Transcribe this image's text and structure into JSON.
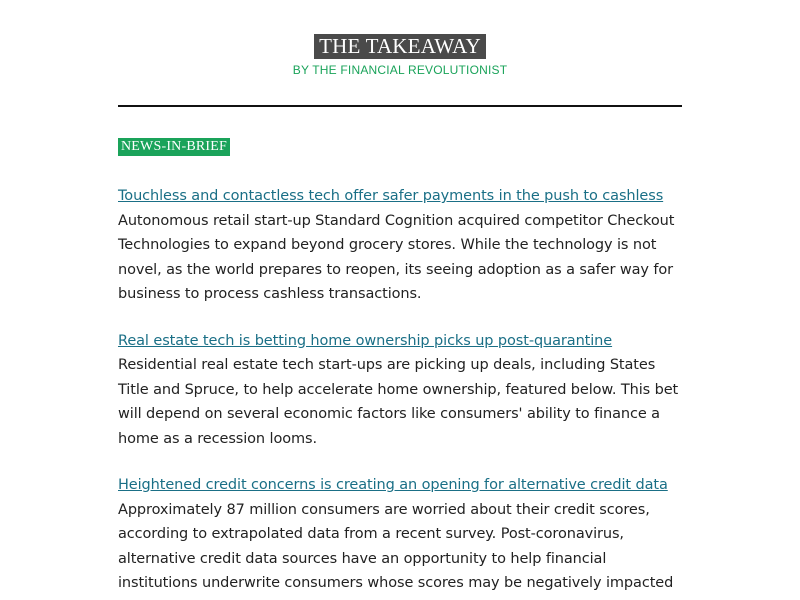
{
  "masthead": {
    "title": "THE TAKEAWAY",
    "byline": "BY THE FINANCIAL REVOLUTIONIST"
  },
  "section": {
    "label": "NEWS-IN-BRIEF"
  },
  "stories": [
    {
      "headline": "Touchless and contactless tech offer safer payments in the push to cashless",
      "body": "Autonomous retail start-up Standard Cognition acquired competitor Checkout Technologies to expand beyond grocery stores. While the technology is not novel, as the world prepares to reopen, its seeing adoption as a safer way for business to process cashless transactions."
    },
    {
      "headline": "Real estate tech is betting home ownership picks up post-quarantine",
      "body": "Residential real estate tech start-ups are picking up deals, including States Title and Spruce, to help accelerate home ownership, featured below. This bet will depend on several economic factors like consumers' ability to finance a home as a recession looms."
    },
    {
      "headline": "Heightened credit concerns is creating an opening for alternative credit data",
      "body": "Approximately 87 million consumers are worried about their credit scores, according to extrapolated data from a recent survey. Post-coronavirus, alternative credit data sources have an opportunity to help financial institutions underwrite consumers whose scores may be negatively impacted"
    }
  ]
}
